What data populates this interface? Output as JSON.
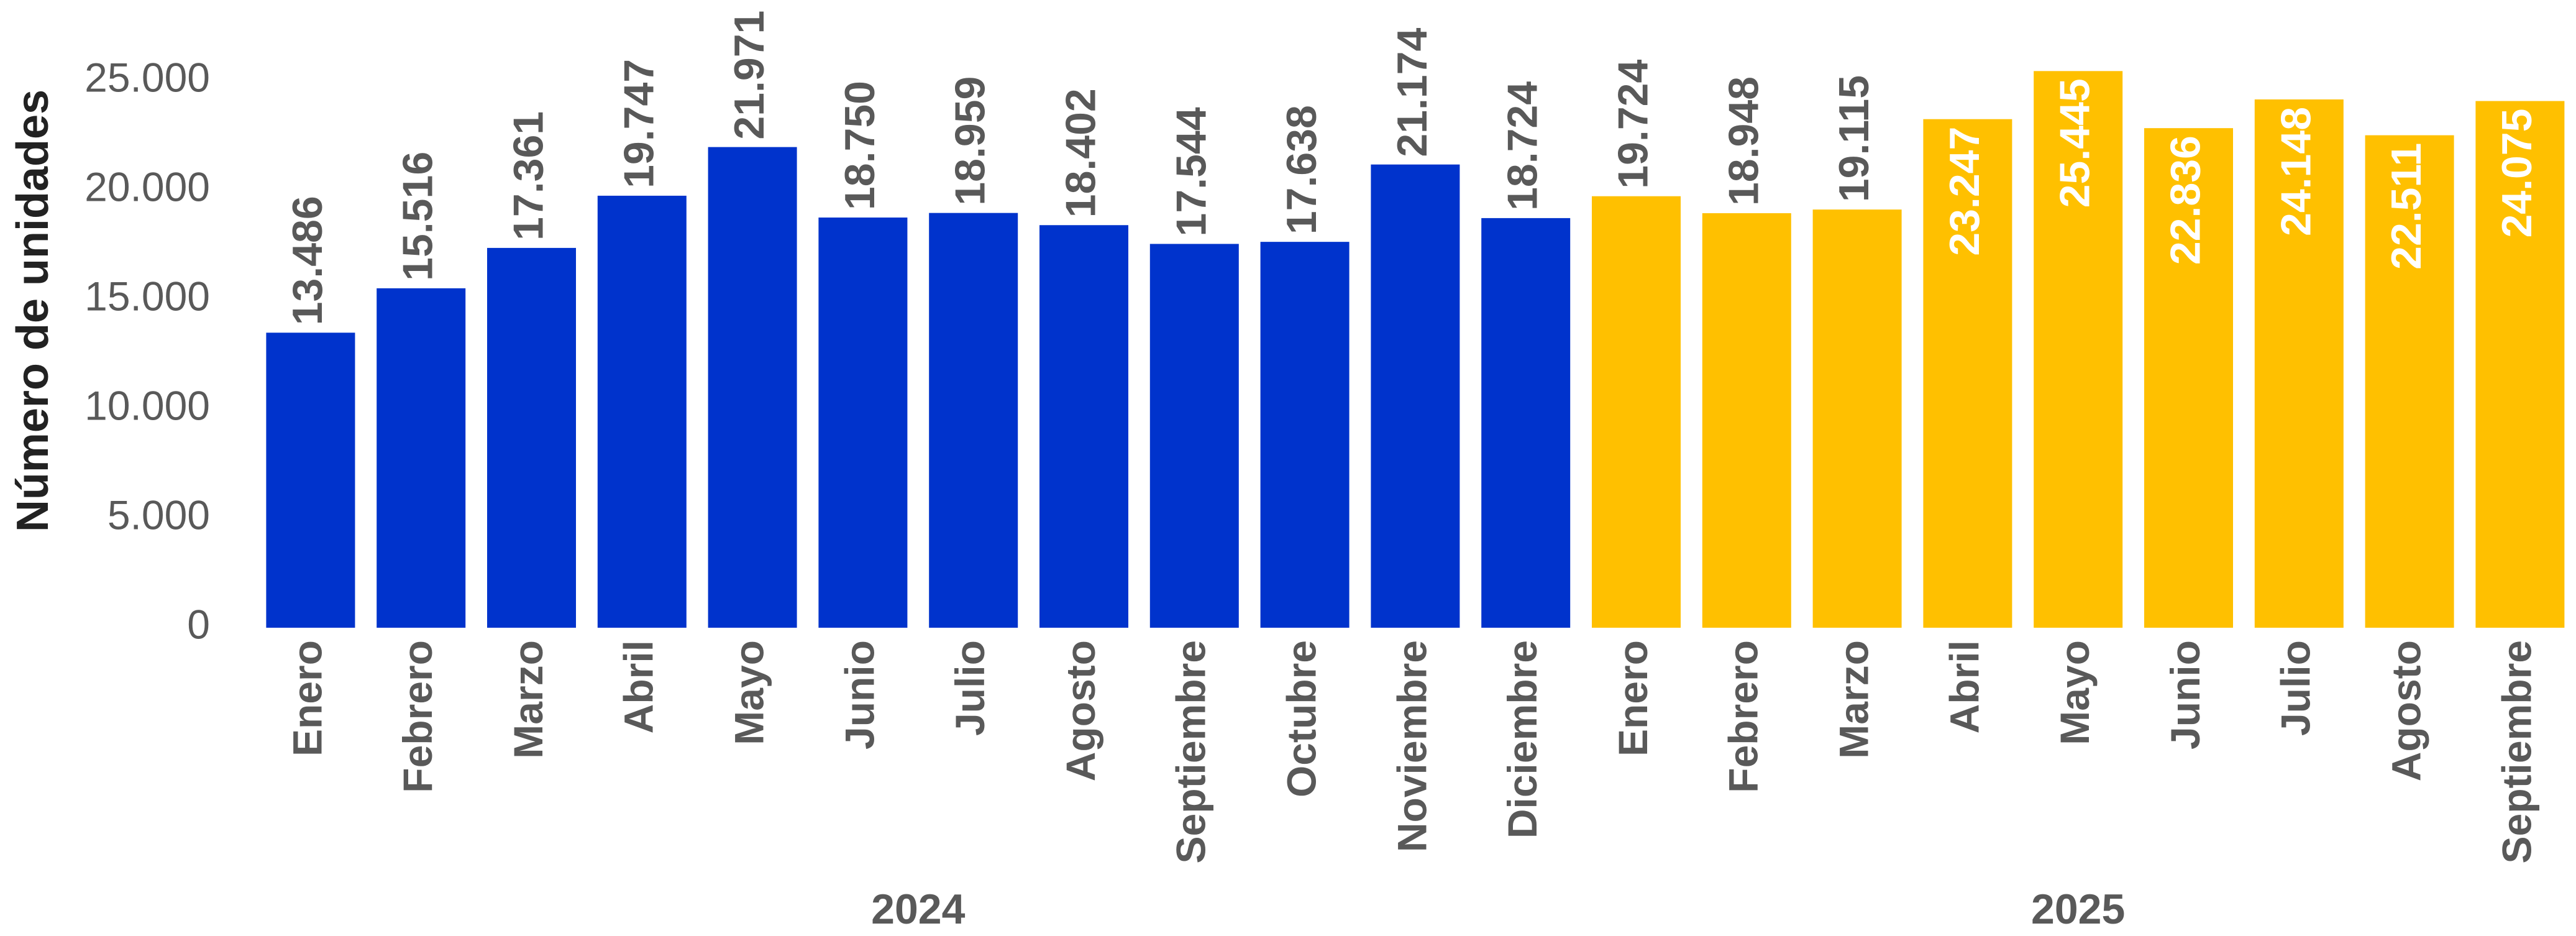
{
  "chart_data": {
    "type": "bar",
    "y_label": "Número de unidades",
    "ylim": [
      0,
      25000
    ],
    "yticks": [
      0,
      {
        "value": 5000,
        "label": "5.000"
      },
      {
        "value": 10000,
        "label": "10.000"
      },
      {
        "value": 15000,
        "label": "15.000"
      },
      {
        "value": 20000,
        "label": "20.000"
      },
      {
        "value": 25000,
        "label": "25.000"
      }
    ],
    "grid": false,
    "groups": [
      {
        "name": "2024",
        "color": "#0033cc",
        "categories": [
          "Enero",
          "Febrero",
          "Marzo",
          "Abril",
          "Mayo",
          "Junio",
          "Julio",
          "Agosto",
          "Septiembre",
          "Octubre",
          "Noviembre",
          "Diciembre"
        ],
        "values": [
          13486,
          15516,
          17361,
          19747,
          21971,
          18750,
          18959,
          18402,
          17544,
          17638,
          21174,
          18724
        ],
        "value_labels": [
          "13.486",
          "15.516",
          "17.361",
          "19.747",
          "21.971",
          "18.750",
          "18.959",
          "18.402",
          "17.544",
          "17.638",
          "21.174",
          "18.724"
        ]
      },
      {
        "name": "2025",
        "color": "#ffc000",
        "categories": [
          "Enero",
          "Febrero",
          "Marzo",
          "Abril",
          "Mayo",
          "Junio",
          "Julio",
          "Agosto",
          "Septiembre"
        ],
        "values": [
          19724,
          18948,
          19115,
          23247,
          25445,
          22836,
          24148,
          22511,
          24075
        ],
        "value_labels": [
          "19.724",
          "18.948",
          "19.115",
          "23.247",
          "25.445",
          "22.836",
          "24.148",
          "22.511",
          "24.075"
        ]
      }
    ]
  }
}
